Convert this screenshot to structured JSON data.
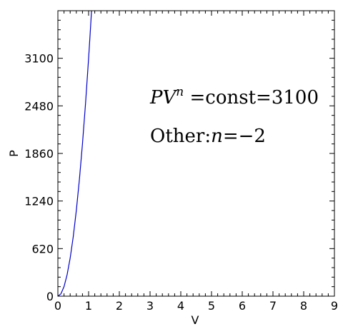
{
  "chart_data": {
    "type": "line",
    "title": "",
    "xlabel": "V",
    "ylabel": "P",
    "xlim": [
      0,
      9
    ],
    "ylim": [
      0,
      3720
    ],
    "x_ticks": [
      0,
      1,
      2,
      3,
      4,
      5,
      6,
      7,
      8,
      9
    ],
    "y_ticks": [
      0,
      620,
      1240,
      1860,
      2480,
      3100
    ],
    "x_tick_labels": [
      "0",
      "1",
      "2",
      "3",
      "4",
      "5",
      "6",
      "7",
      "8",
      "9"
    ],
    "y_tick_labels": [
      "0",
      "620",
      "1240",
      "1860",
      "2480",
      "3100"
    ],
    "grid": false,
    "series": [
      {
        "color": "#0000cc",
        "equation": "P = 3100 * V^2",
        "x": [
          0,
          0.1,
          0.2,
          0.3,
          0.4,
          0.5,
          0.6,
          0.7,
          0.8,
          0.9,
          1.0,
          1.05,
          1.095
        ],
        "y": [
          0,
          31,
          124,
          279,
          496,
          775,
          1116,
          1519,
          1984,
          2511,
          3100,
          3418,
          3717
        ]
      }
    ],
    "annotations": [
      {
        "id": "equation",
        "parts": [
          {
            "text": "PV",
            "style": "italic"
          },
          {
            "text": "n",
            "style": "italic-sup"
          },
          {
            "text": " =const=3100",
            "style": "normal"
          }
        ]
      },
      {
        "id": "other",
        "parts": [
          {
            "text": "Other:",
            "style": "normal"
          },
          {
            "text": "n",
            "style": "italic"
          },
          {
            "text": "=−2",
            "style": "normal"
          }
        ]
      }
    ]
  }
}
